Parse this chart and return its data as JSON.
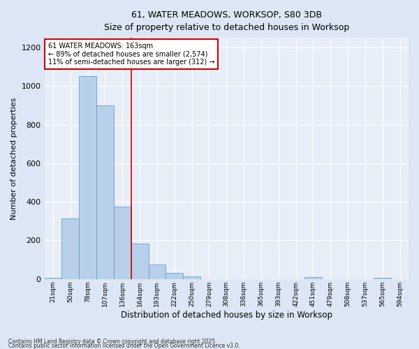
{
  "title_line1": "61, WATER MEADOWS, WORKSOP, S80 3DB",
  "title_line2": "Size of property relative to detached houses in Worksop",
  "xlabel": "Distribution of detached houses by size in Worksop",
  "ylabel": "Number of detached properties",
  "categories": [
    "21sqm",
    "50sqm",
    "78sqm",
    "107sqm",
    "136sqm",
    "164sqm",
    "193sqm",
    "222sqm",
    "250sqm",
    "279sqm",
    "308sqm",
    "336sqm",
    "365sqm",
    "393sqm",
    "422sqm",
    "451sqm",
    "479sqm",
    "508sqm",
    "537sqm",
    "565sqm",
    "594sqm"
  ],
  "values": [
    8,
    315,
    1050,
    900,
    375,
    185,
    75,
    30,
    15,
    0,
    0,
    0,
    0,
    0,
    0,
    10,
    0,
    0,
    0,
    5,
    0
  ],
  "bar_color": "#b8d0ea",
  "bar_edge_color": "#6aa0cc",
  "background_color": "#e8eef8",
  "grid_color": "#ffffff",
  "annotation_box_color": "#ffffff",
  "annotation_box_edge": "#cc0000",
  "annotation_text_line1": "61 WATER MEADOWS: 163sqm",
  "annotation_text_line2": "← 89% of detached houses are smaller (2,574)",
  "annotation_text_line3": "11% of semi-detached houses are larger (312) →",
  "vline_x": 4.5,
  "vline_color": "#cc0000",
  "ylim": [
    0,
    1250
  ],
  "yticks": [
    0,
    200,
    400,
    600,
    800,
    1000,
    1200
  ],
  "footnote_line1": "Contains HM Land Registry data © Crown copyright and database right 2025.",
  "footnote_line2": "Contains public sector information licensed under the Open Government Licence v3.0.",
  "fig_bg": "#dce6f4"
}
